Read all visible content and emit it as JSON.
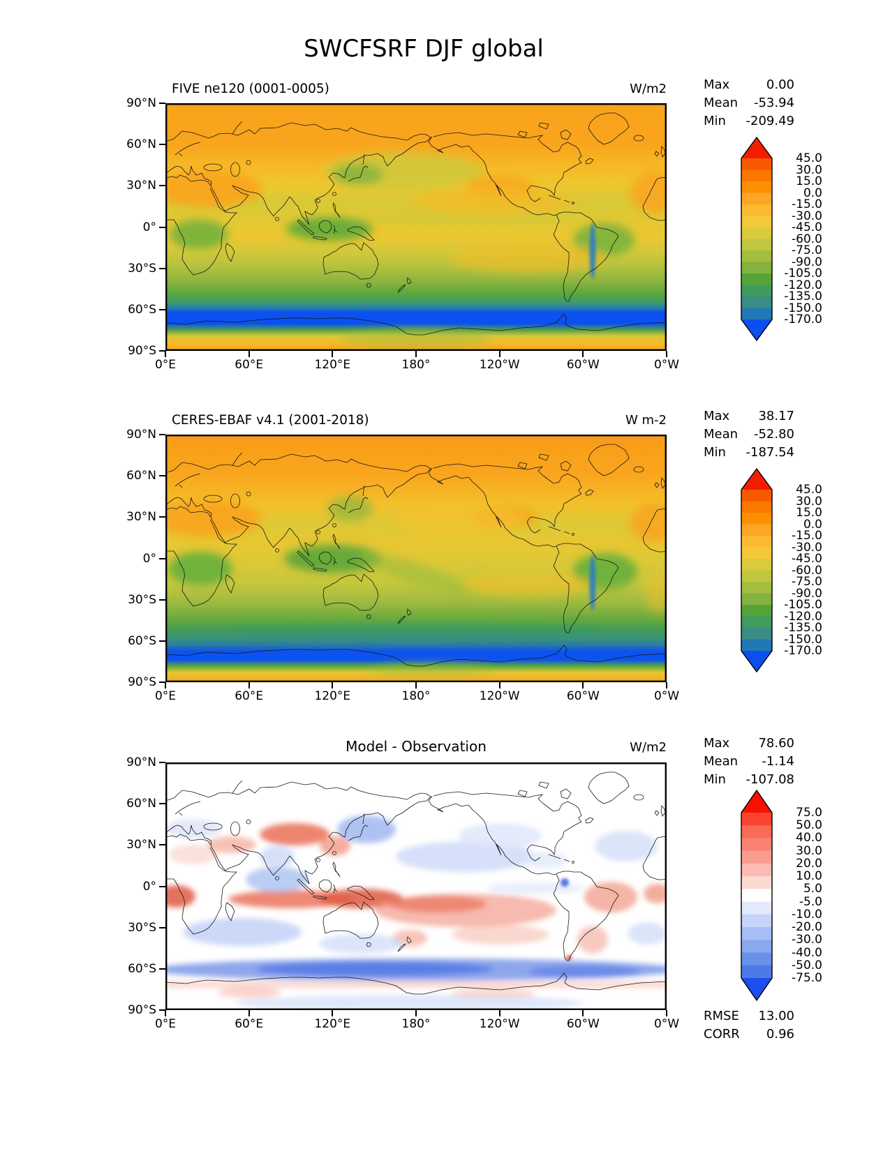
{
  "figure_title": "SWCFSRF DJF global",
  "panels": [
    {
      "id": "model",
      "title": "FIVE ne120 (0001-0005)",
      "units": "W/m2",
      "stats": [
        {
          "label": "Max",
          "value": "0.00"
        },
        {
          "label": "Mean",
          "value": "-53.94"
        },
        {
          "label": "Min",
          "value": "-209.49"
        }
      ]
    },
    {
      "id": "obs",
      "title": "CERES-EBAF v4.1 (2001-2018)",
      "units": "W m-2",
      "stats": [
        {
          "label": "Max",
          "value": "38.17"
        },
        {
          "label": "Mean",
          "value": "-52.80"
        },
        {
          "label": "Min",
          "value": "-187.54"
        }
      ]
    },
    {
      "id": "diff",
      "title": "Model - Observation",
      "units": "W/m2",
      "stats": [
        {
          "label": "Max",
          "value": "78.60"
        },
        {
          "label": "Mean",
          "value": "-1.14"
        },
        {
          "label": "Min",
          "value": "-107.08"
        }
      ],
      "extra_stats": [
        {
          "label": "RMSE",
          "value": "13.00"
        },
        {
          "label": "CORR",
          "value": "0.96"
        }
      ]
    }
  ],
  "axes": {
    "lat_ticks": [
      "90°N",
      "60°N",
      "30°N",
      "0°",
      "30°S",
      "60°S",
      "90°S"
    ],
    "lon_ticks": [
      "0°E",
      "60°E",
      "120°E",
      "180°",
      "120°W",
      "60°W",
      "0°W"
    ]
  },
  "colorbars": [
    {
      "ticks": [
        "45.0",
        "30.0",
        "15.0",
        "0.0",
        "-15.0",
        "-30.0",
        "-45.0",
        "-60.0",
        "-75.0",
        "-90.0",
        "-105.0",
        "-120.0",
        "-135.0",
        "-150.0",
        "-170.0"
      ],
      "colors": [
        "#f31d00",
        "#f75900",
        "#fa7800",
        "#fc9000",
        "#fda525",
        "#fdba30",
        "#f3c93a",
        "#dacb3d",
        "#c0c63e",
        "#a3bd3f",
        "#83b23e",
        "#54a437",
        "#3f9b5e",
        "#3a8c85",
        "#2178b4",
        "#0b4ff0"
      ]
    },
    {
      "ticks": [
        "45.0",
        "30.0",
        "15.0",
        "0.0",
        "-15.0",
        "-30.0",
        "-45.0",
        "-60.0",
        "-75.0",
        "-90.0",
        "-105.0",
        "-120.0",
        "-135.0",
        "-150.0",
        "-170.0"
      ],
      "colors": [
        "#f31d00",
        "#f75900",
        "#fa7800",
        "#fc9000",
        "#fda525",
        "#fdba30",
        "#f3c93a",
        "#dacb3d",
        "#c0c63e",
        "#a3bd3f",
        "#83b23e",
        "#54a437",
        "#3f9b5e",
        "#3a8c85",
        "#2178b4",
        "#0b4ff0"
      ]
    },
    {
      "ticks": [
        "75.0",
        "50.0",
        "40.0",
        "30.0",
        "20.0",
        "10.0",
        "5.0",
        "-5.0",
        "-10.0",
        "-20.0",
        "-30.0",
        "-40.0",
        "-50.0",
        "-75.0"
      ],
      "colors": [
        "#f81000",
        "#fb4430",
        "#f96a57",
        "#f98273",
        "#fa9d91",
        "#fbbbb3",
        "#fdd9d3",
        "#ffffff",
        "#e2eafb",
        "#c5d4f8",
        "#a6bef3",
        "#88a8ef",
        "#6a91ea",
        "#4e7ae6",
        "#1b50ee"
      ]
    }
  ],
  "chart_data": [
    {
      "type": "heatmap",
      "title": "FIVE ne120 (0001-0005)",
      "variable": "SWCFSRF",
      "season": "DJF",
      "region": "global",
      "units": "W/m2",
      "x": {
        "ticks": [
          "0°E",
          "60°E",
          "120°E",
          "180°",
          "120°W",
          "60°W",
          "0°W"
        ]
      },
      "y": {
        "ticks": [
          "90°N",
          "60°N",
          "30°N",
          "0°",
          "30°S",
          "60°S",
          "90°S"
        ]
      },
      "levels": [
        -170,
        -150,
        -135,
        -120,
        -105,
        -90,
        -75,
        -60,
        -45,
        -30,
        -15,
        0,
        15,
        30,
        45
      ],
      "stats": {
        "max": 0.0,
        "mean": -53.94,
        "min": -209.49
      }
    },
    {
      "type": "heatmap",
      "title": "CERES-EBAF v4.1 (2001-2018)",
      "variable": "SWCFSRF",
      "season": "DJF",
      "region": "global",
      "units": "W m-2",
      "x": {
        "ticks": [
          "0°E",
          "60°E",
          "120°E",
          "180°",
          "120°W",
          "60°W",
          "0°W"
        ]
      },
      "y": {
        "ticks": [
          "90°N",
          "60°N",
          "30°N",
          "0°",
          "30°S",
          "60°S",
          "90°S"
        ]
      },
      "levels": [
        -170,
        -150,
        -135,
        -120,
        -105,
        -90,
        -75,
        -60,
        -45,
        -30,
        -15,
        0,
        15,
        30,
        45
      ],
      "stats": {
        "max": 38.17,
        "mean": -52.8,
        "min": -187.54
      }
    },
    {
      "type": "heatmap",
      "title": "Model - Observation",
      "variable": "SWCFSRF difference",
      "season": "DJF",
      "region": "global",
      "units": "W/m2",
      "x": {
        "ticks": [
          "0°E",
          "60°E",
          "120°E",
          "180°",
          "120°W",
          "60°W",
          "0°W"
        ]
      },
      "y": {
        "ticks": [
          "90°N",
          "60°N",
          "30°N",
          "0°",
          "30°S",
          "60°S",
          "90°S"
        ]
      },
      "levels": [
        -75,
        -50,
        -40,
        -30,
        -20,
        -10,
        -5,
        5,
        10,
        20,
        30,
        40,
        50,
        75
      ],
      "stats": {
        "max": 78.6,
        "mean": -1.14,
        "min": -107.08,
        "rmse": 13.0,
        "corr": 0.96
      }
    }
  ]
}
